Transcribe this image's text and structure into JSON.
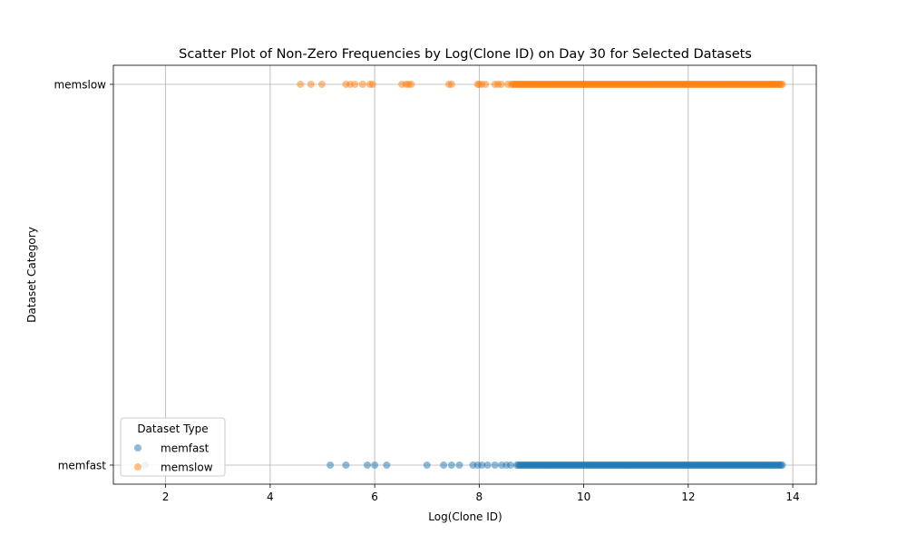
{
  "chart_data": {
    "type": "scatter",
    "title": "Scatter Plot of Non-Zero Frequencies by Log(Clone ID) on Day 30 for Selected Datasets",
    "xlabel": "Log(Clone ID)",
    "ylabel": "Dataset Category",
    "xlim": [
      1.0,
      14.45
    ],
    "x_ticks": [
      2,
      4,
      6,
      8,
      10,
      12,
      14
    ],
    "y_categories": [
      "memfast",
      "memslow"
    ],
    "grid": true,
    "legend": {
      "title": "Dataset Type",
      "placement": "lower-left",
      "entries": [
        "memfast",
        "memslow"
      ]
    },
    "series": [
      {
        "name": "memfast",
        "category": "memfast",
        "color": "#1f77b4",
        "discrete_x": [
          1.61,
          5.15,
          5.45,
          5.86,
          6.0,
          6.23,
          7.0,
          7.32,
          7.47,
          7.62,
          7.88,
          7.97,
          8.05,
          8.16,
          8.3,
          8.43,
          8.52,
          8.6,
          8.72
        ],
        "dense_range": [
          8.75,
          13.82
        ]
      },
      {
        "name": "memslow",
        "category": "memslow",
        "color": "#ff7f0e",
        "discrete_x": [
          4.58,
          4.78,
          4.99,
          5.45,
          5.53,
          5.62,
          5.77,
          5.91,
          5.96,
          6.52,
          6.6,
          6.65,
          6.7,
          7.42,
          7.47,
          7.97,
          8.0,
          8.05,
          8.12,
          8.3,
          8.36,
          8.42,
          8.55,
          8.62
        ],
        "dense_range": [
          8.65,
          13.82
        ]
      }
    ]
  }
}
